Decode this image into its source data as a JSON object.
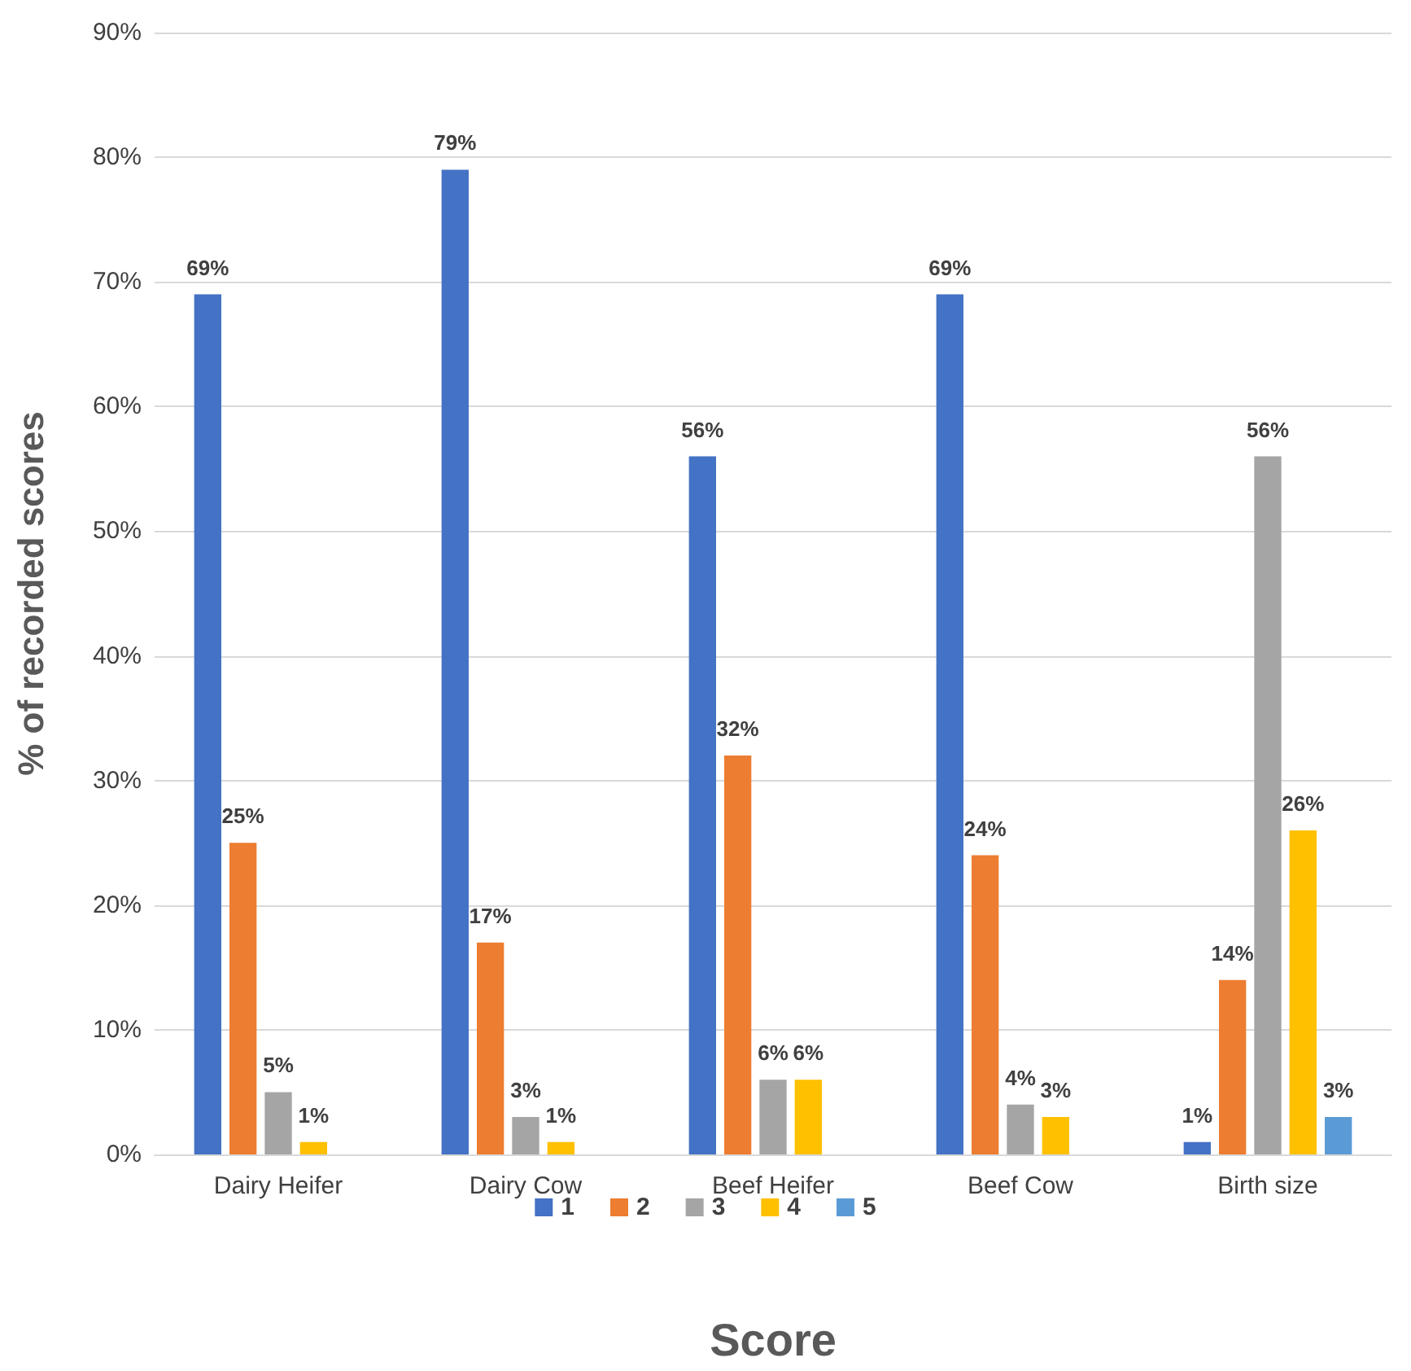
{
  "chart_data": {
    "type": "bar",
    "xlabel": "Score",
    "ylabel": "% of recorded scores",
    "categories": [
      "Dairy Heifer",
      "Dairy Cow",
      "Beef Heifer",
      "Beef Cow",
      "Birth size"
    ],
    "series": [
      {
        "name": "1",
        "color": "#4472c4",
        "values": [
          69,
          79,
          56,
          69,
          1
        ],
        "value_labels": [
          "69%",
          "79%",
          "56%",
          "69%",
          "1%"
        ]
      },
      {
        "name": "2",
        "color": "#ed7d31",
        "values": [
          25,
          17,
          32,
          24,
          14
        ],
        "value_labels": [
          "25%",
          "17%",
          "32%",
          "24%",
          "14%"
        ]
      },
      {
        "name": "3",
        "color": "#a5a5a5",
        "values": [
          5,
          3,
          6,
          4,
          56
        ],
        "value_labels": [
          "5%",
          "3%",
          "6%",
          "4%",
          "56%"
        ]
      },
      {
        "name": "4",
        "color": "#ffc000",
        "values": [
          1,
          1,
          6,
          3,
          26
        ],
        "value_labels": [
          "1%",
          "1%",
          "6%",
          "3%",
          "26%"
        ]
      },
      {
        "name": "5",
        "color": "#5b9bd5",
        "values": [
          null,
          null,
          null,
          null,
          3
        ],
        "value_labels": [
          null,
          null,
          null,
          null,
          "3%"
        ]
      }
    ],
    "ylim": [
      0,
      90
    ],
    "yticks": [
      {
        "value": 0,
        "label": "0%"
      },
      {
        "value": 10,
        "label": "10%"
      },
      {
        "value": 20,
        "label": "20%"
      },
      {
        "value": 30,
        "label": "30%"
      },
      {
        "value": 40,
        "label": "40%"
      },
      {
        "value": 50,
        "label": "50%"
      },
      {
        "value": 60,
        "label": "60%"
      },
      {
        "value": 70,
        "label": "70%"
      },
      {
        "value": 80,
        "label": "80%"
      },
      {
        "value": 90,
        "label": "90%"
      }
    ],
    "grid": "y",
    "legend": "bottom"
  }
}
